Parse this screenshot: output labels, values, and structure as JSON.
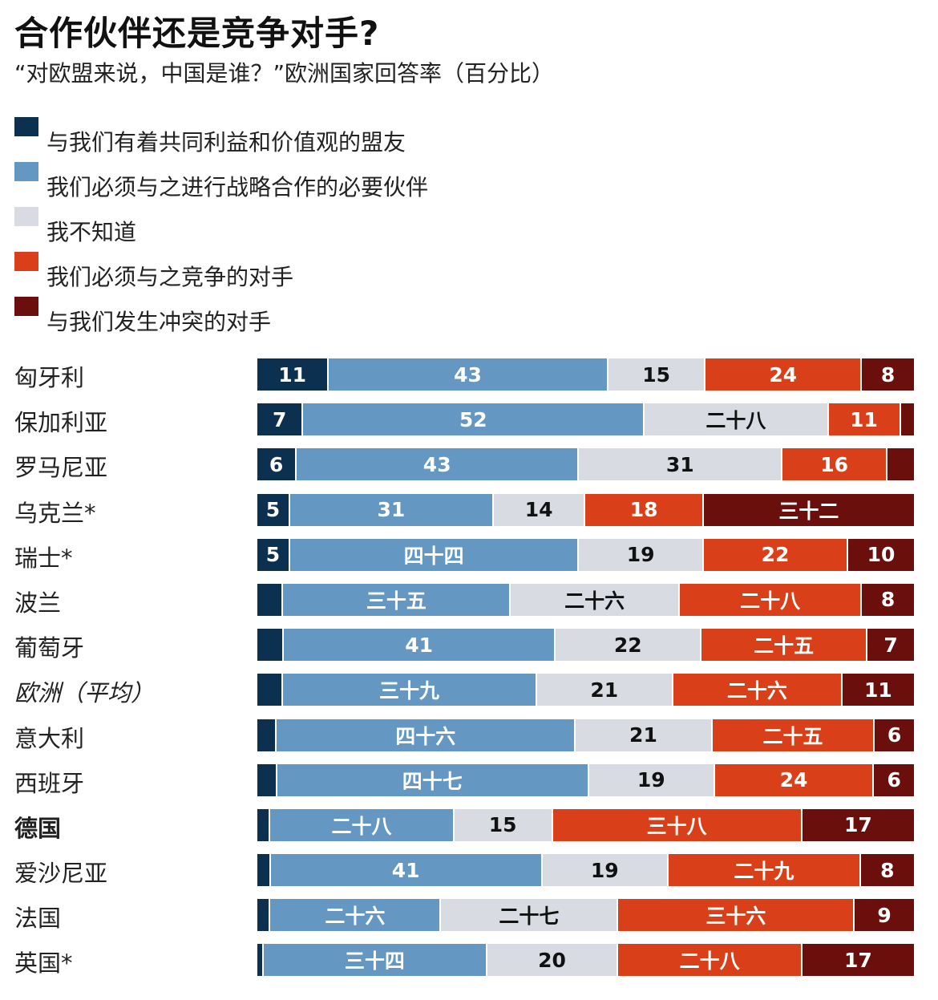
{
  "chart_data": {
    "type": "bar",
    "orientation": "horizontal",
    "stacked": "100%",
    "title": "合作伙伴还是竞争对手?",
    "subtitle": "“对欧盟来说，中国是谁？”欧洲国家回答率（百分比）",
    "legend_position": "top-left",
    "series": [
      {
        "name": "与我们有着共同利益和价值观的盟友",
        "color": "#0c3050",
        "text_color": "#ffffff"
      },
      {
        "name": "我们必须与之进行战略合作的必要伙伴",
        "color": "#6497c2",
        "text_color": "#ffffff"
      },
      {
        "name": "我不知道",
        "color": "#d8dce2",
        "text_color": "#111111"
      },
      {
        "name": "我们必须与之竞争的对手",
        "color": "#d9401a",
        "text_color": "#ffffff"
      },
      {
        "name": "与我们发生冲突的对手",
        "color": "#6a0f0b",
        "text_color": "#ffffff"
      }
    ],
    "categories": [
      {
        "name": "匈牙利",
        "values": [
          11,
          43,
          15,
          24,
          8
        ],
        "labels": [
          "11",
          "43",
          "15",
          "24",
          "8"
        ]
      },
      {
        "name": "保加利亚",
        "values": [
          7,
          52,
          28,
          11,
          2
        ],
        "labels": [
          "7",
          "52",
          "二十八",
          "11",
          ""
        ]
      },
      {
        "name": "罗马尼亚",
        "values": [
          6,
          43,
          31,
          16,
          4
        ],
        "labels": [
          "6",
          "43",
          "31",
          "16",
          ""
        ]
      },
      {
        "name": "乌克兰*",
        "values": [
          5,
          31,
          14,
          18,
          32
        ],
        "labels": [
          "5",
          "31",
          "14",
          "18",
          "三十二"
        ]
      },
      {
        "name": "瑞士*",
        "values": [
          5,
          44,
          19,
          22,
          10
        ],
        "labels": [
          "5",
          "四十四",
          "19",
          "22",
          "10"
        ]
      },
      {
        "name": "波兰",
        "values": [
          4,
          35,
          26,
          28,
          8
        ],
        "labels": [
          "",
          "三十五",
          "二十六",
          "二十八",
          "8"
        ]
      },
      {
        "name": "葡萄牙",
        "values": [
          4,
          41,
          22,
          25,
          7
        ],
        "labels": [
          "",
          "41",
          "22",
          "二十五",
          "7"
        ]
      },
      {
        "name": "欧洲（平均）",
        "style": "italic",
        "values": [
          4,
          39,
          21,
          26,
          11
        ],
        "labels": [
          "",
          "三十九",
          "21",
          "二十六",
          "11"
        ]
      },
      {
        "name": "意大利",
        "values": [
          3,
          46,
          21,
          25,
          6
        ],
        "labels": [
          "",
          "四十六",
          "21",
          "二十五",
          "6"
        ]
      },
      {
        "name": "西班牙",
        "values": [
          3,
          47,
          19,
          24,
          6
        ],
        "labels": [
          "",
          "四十七",
          "19",
          "24",
          "6"
        ]
      },
      {
        "name": "德国",
        "style": "bold",
        "values": [
          2,
          28,
          15,
          38,
          17
        ],
        "labels": [
          "",
          "二十八",
          "15",
          "三十八",
          "17"
        ]
      },
      {
        "name": "爱沙尼亚",
        "values": [
          2,
          41,
          19,
          29,
          8
        ],
        "labels": [
          "",
          "41",
          "19",
          "二十九",
          "8"
        ]
      },
      {
        "name": "法国",
        "values": [
          2,
          26,
          27,
          36,
          9
        ],
        "labels": [
          "",
          "二十六",
          "二十七",
          "三十六",
          "9"
        ]
      },
      {
        "name": "英国*",
        "values": [
          1,
          34,
          20,
          28,
          17
        ],
        "labels": [
          "",
          "三十四",
          "20",
          "二十八",
          "17"
        ]
      }
    ]
  }
}
